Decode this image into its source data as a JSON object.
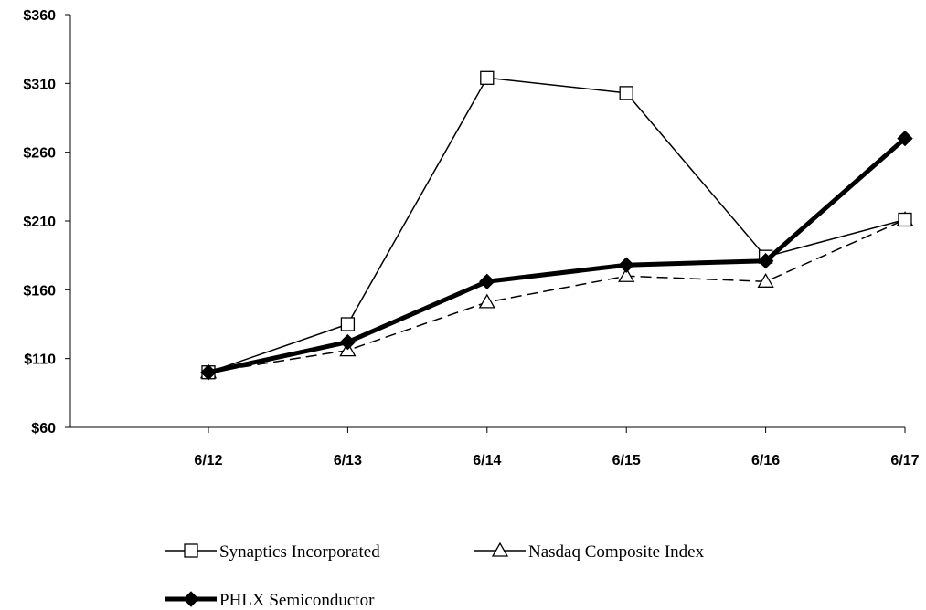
{
  "chart_data": {
    "type": "line",
    "title": "",
    "xlabel": "",
    "ylabel": "",
    "categories": [
      "6/12",
      "6/13",
      "6/14",
      "6/15",
      "6/16",
      "6/17"
    ],
    "ylim": [
      60,
      360
    ],
    "yticks": [
      60,
      110,
      160,
      210,
      260,
      310,
      360
    ],
    "ytick_labels": [
      "$60",
      "$110",
      "$160",
      "$210",
      "$260",
      "$310",
      "$360"
    ],
    "grid": false,
    "legend_position": "bottom",
    "series": [
      {
        "name": "Synaptics Incorporated",
        "values": [
          100,
          135,
          314,
          303,
          184,
          211
        ],
        "color": "#000000",
        "style": "solid-thin",
        "marker": "open-square"
      },
      {
        "name": "Nasdaq Composite Index",
        "values": [
          100,
          116,
          151,
          170,
          166,
          211
        ],
        "color": "#000000",
        "style": "dashed",
        "marker": "open-triangle"
      },
      {
        "name": "PHLX Semiconductor",
        "values": [
          100,
          122,
          166,
          178,
          181,
          270
        ],
        "color": "#000000",
        "style": "solid-thick",
        "marker": "filled-diamond"
      }
    ]
  }
}
